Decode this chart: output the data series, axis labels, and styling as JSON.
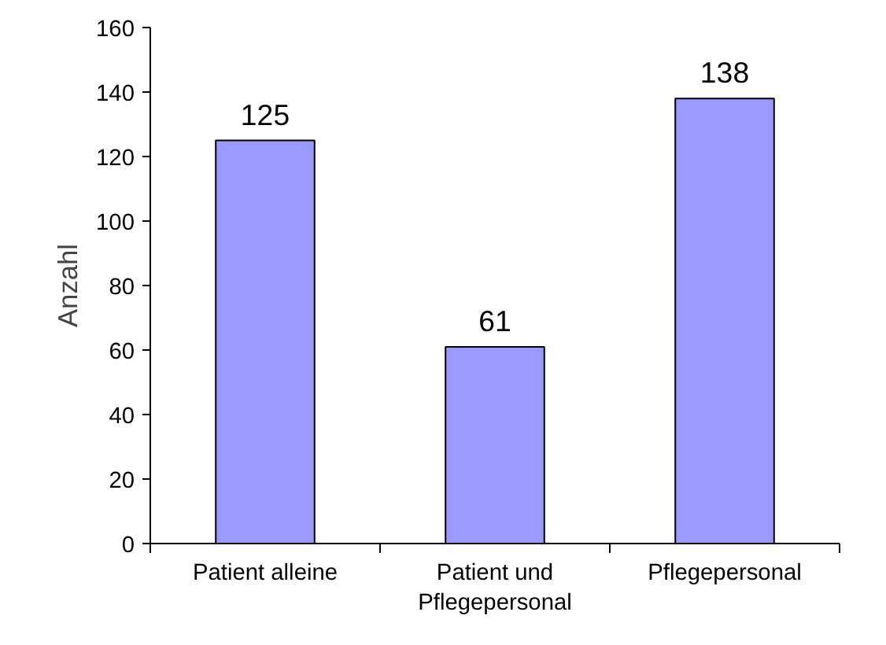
{
  "chart_data": {
    "type": "bar",
    "ylabel": "Anzahl",
    "categories": [
      "Patient alleine",
      "Patient und\nPflegepersonal",
      "Pflegepersonal"
    ],
    "values": [
      125,
      61,
      138
    ],
    "color": "#9999ff",
    "ylim": [
      0,
      160
    ],
    "yticks": [
      0,
      20,
      40,
      60,
      80,
      100,
      120,
      140,
      160
    ],
    "data_labels": true
  }
}
